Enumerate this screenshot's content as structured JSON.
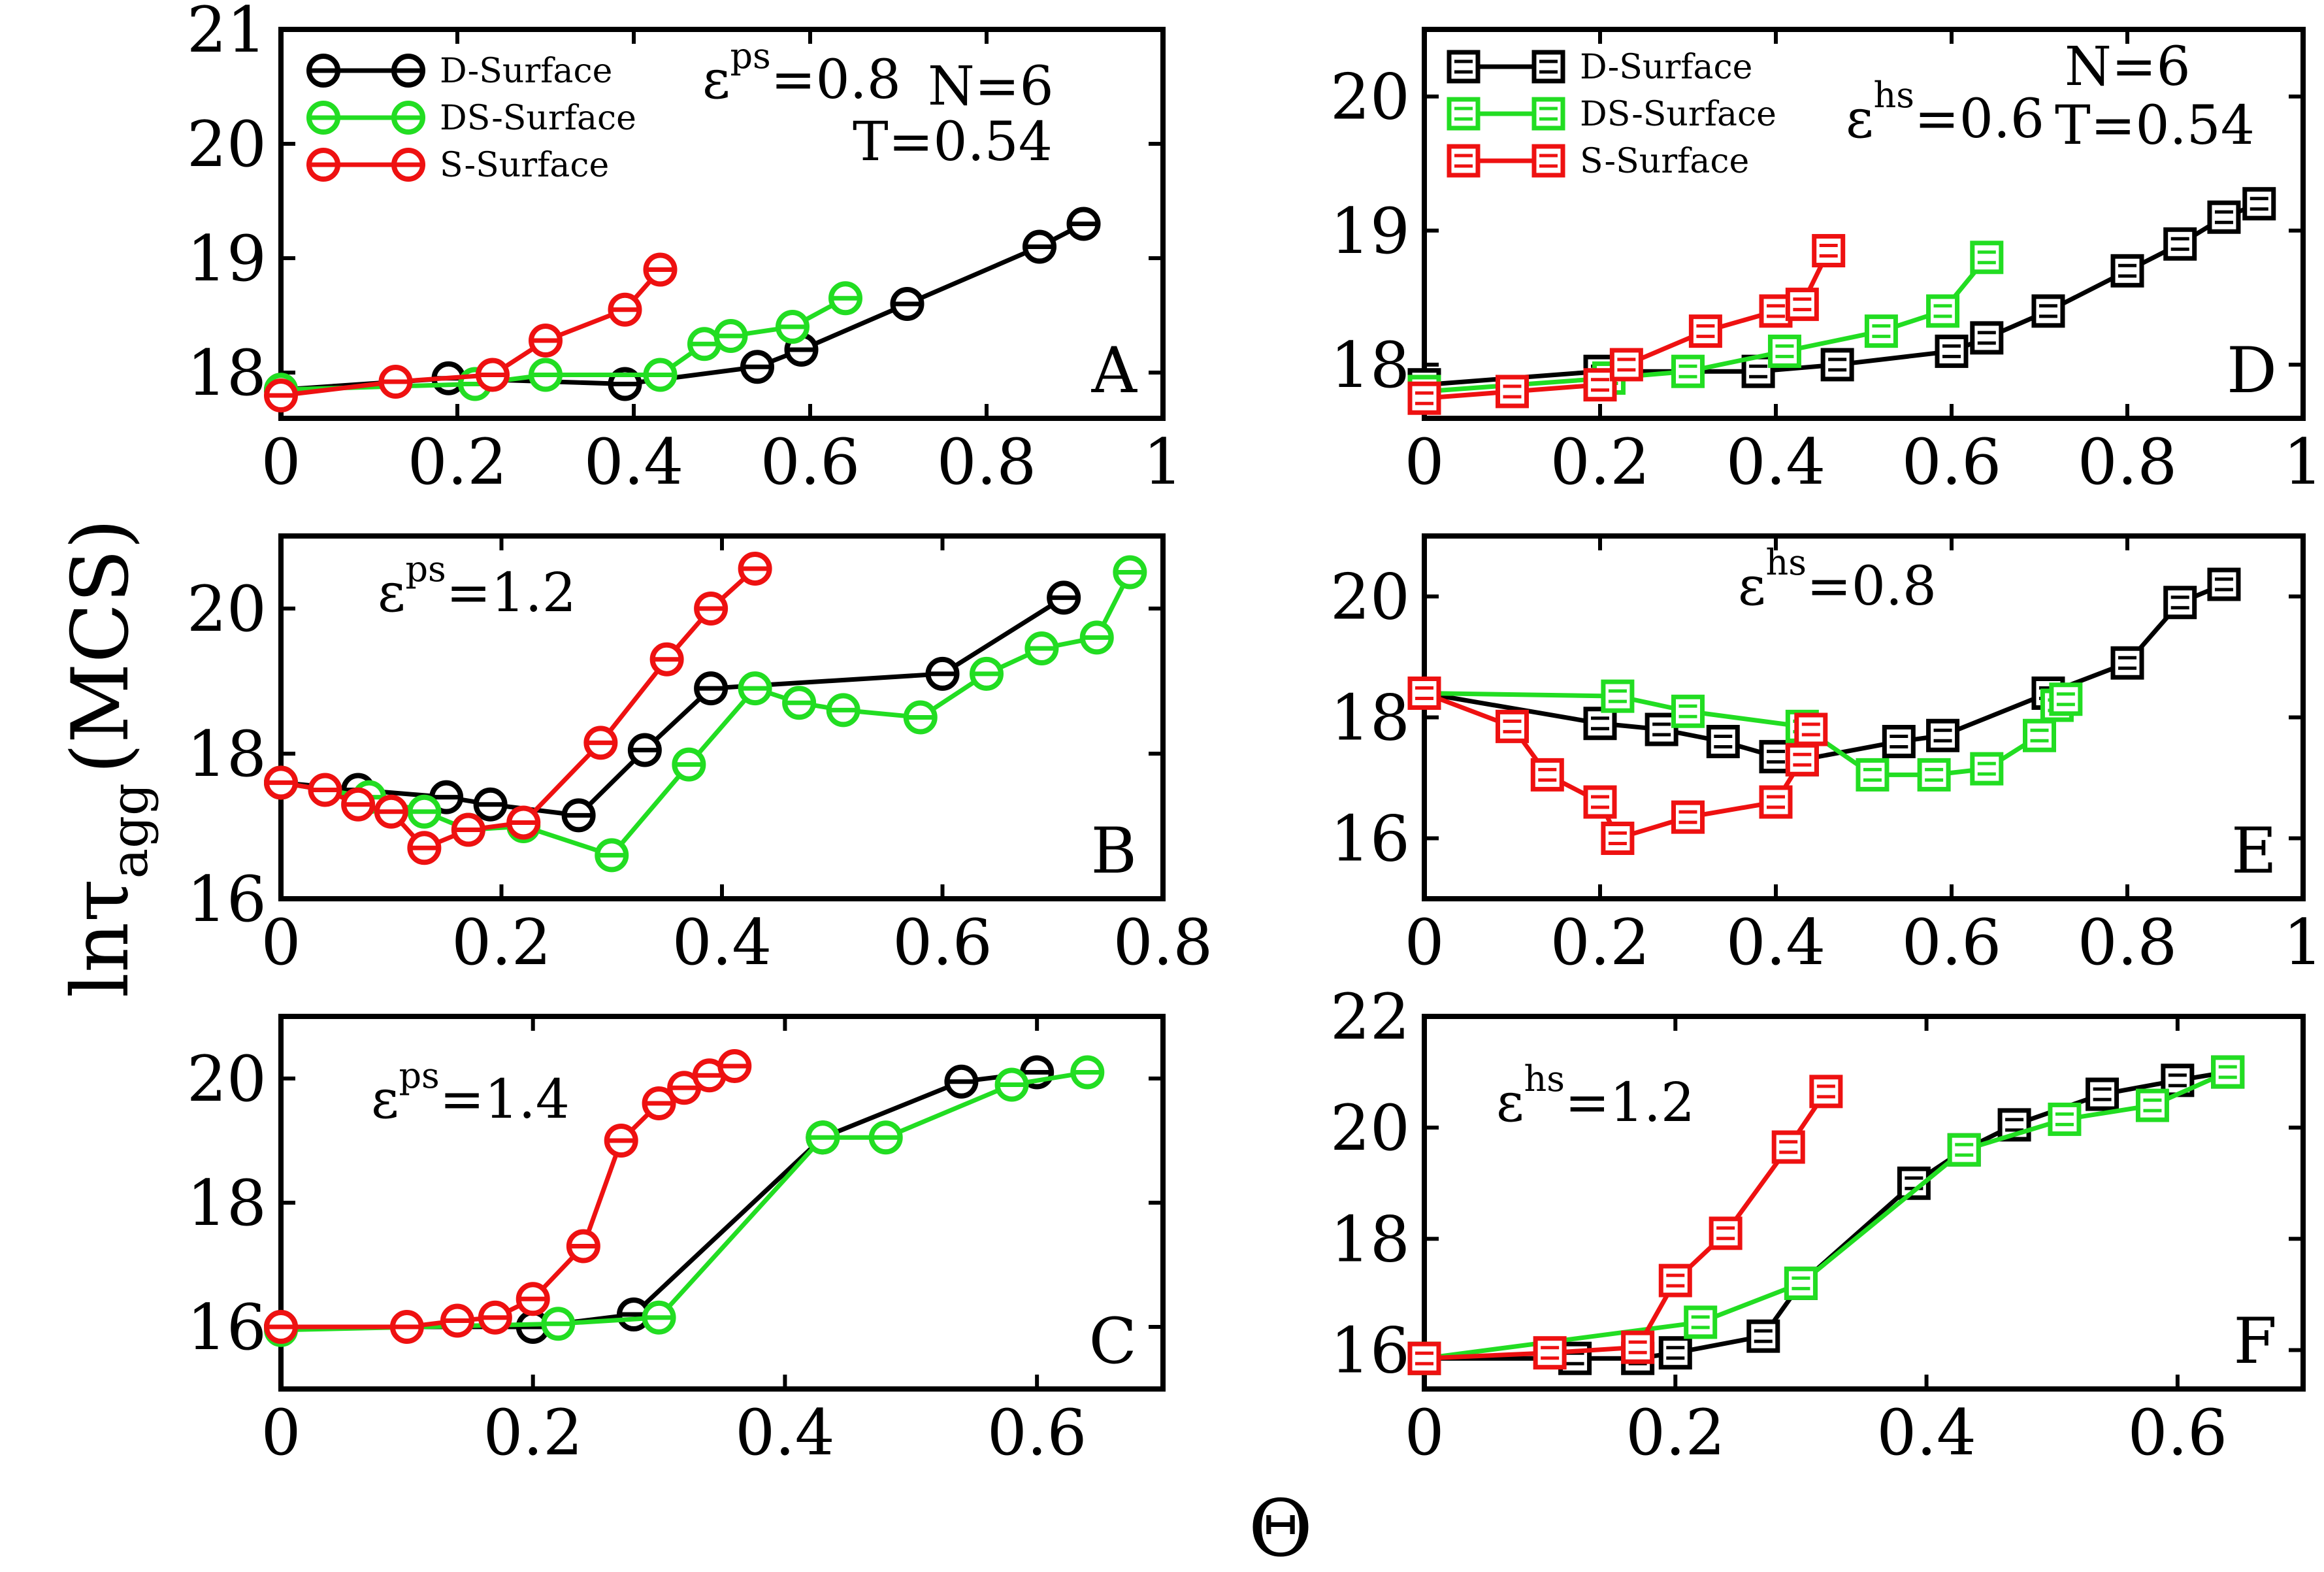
{
  "figure": {
    "ylabel": {
      "main": "lnτ",
      "sub": "agg",
      "rest": "(MCS)"
    },
    "xlabel": "Θ"
  },
  "series_colors": {
    "D-Surface": "#000000",
    "DS-Surface": "#22dd22",
    "S-Surface": "#ee1111"
  },
  "chart_data": [
    {
      "type": "line",
      "panel": "A",
      "marker": "circle",
      "xlim": [
        0,
        1
      ],
      "ylim": [
        17.6,
        21
      ],
      "xticks": [
        0,
        0.2,
        0.4,
        0.6,
        0.8,
        1
      ],
      "xtick_labels": [
        "0",
        "0.2",
        "0.4",
        "0.6",
        "0.8",
        "1"
      ],
      "yticks": [
        18,
        19,
        20,
        21
      ],
      "ytick_labels": [
        "18",
        "19",
        "20",
        "21"
      ],
      "legend": [
        "D-Surface",
        "DS-Surface",
        "S-Surface"
      ],
      "annotations": [
        {
          "name": "epsilon-label",
          "base": "ε",
          "sup": "ps",
          "value": "=0.8"
        },
        {
          "name": "n-label",
          "text": "N=6"
        },
        {
          "name": "t-label",
          "text": "T=0.54"
        }
      ],
      "series": [
        {
          "name": "D-Surface",
          "x": [
            0,
            0.19,
            0.39,
            0.54,
            0.59,
            0.71,
            0.86,
            0.91
          ],
          "y": [
            17.85,
            17.95,
            17.9,
            18.05,
            18.2,
            18.6,
            19.1,
            19.3
          ]
        },
        {
          "name": "DS-Surface",
          "x": [
            0,
            0.22,
            0.3,
            0.43,
            0.48,
            0.51,
            0.58,
            0.64
          ],
          "y": [
            17.85,
            17.9,
            17.98,
            17.98,
            18.25,
            18.32,
            18.4,
            18.65
          ]
        },
        {
          "name": "S-Surface",
          "x": [
            0,
            0.13,
            0.24,
            0.3,
            0.39,
            0.43
          ],
          "y": [
            17.8,
            17.92,
            17.98,
            18.28,
            18.55,
            18.9
          ]
        }
      ]
    },
    {
      "type": "line",
      "panel": "B",
      "marker": "circle",
      "xlim": [
        0,
        0.8
      ],
      "ylim": [
        16,
        21
      ],
      "xticks": [
        0,
        0.2,
        0.4,
        0.6,
        0.8
      ],
      "xtick_labels": [
        "0",
        "0.2",
        "0.4",
        "0.6",
        "0.8"
      ],
      "yticks": [
        16,
        18,
        20
      ],
      "ytick_labels": [
        "16",
        "18",
        "20"
      ],
      "annotations": [
        {
          "name": "epsilon-label",
          "base": "ε",
          "sup": "ps",
          "value": "=1.2"
        }
      ],
      "series": [
        {
          "name": "D-Surface",
          "x": [
            0,
            0.07,
            0.15,
            0.19,
            0.27,
            0.33,
            0.39,
            0.6,
            0.71
          ],
          "y": [
            17.6,
            17.5,
            17.4,
            17.3,
            17.15,
            18.05,
            18.9,
            19.1,
            20.15
          ]
        },
        {
          "name": "DS-Surface",
          "x": [
            0,
            0.08,
            0.13,
            0.17,
            0.22,
            0.3,
            0.37,
            0.43,
            0.47,
            0.51,
            0.58,
            0.64,
            0.69,
            0.74,
            0.77
          ],
          "y": [
            17.6,
            17.4,
            17.2,
            16.95,
            17.0,
            16.6,
            17.85,
            18.9,
            18.7,
            18.6,
            18.5,
            19.1,
            19.45,
            19.6,
            20.5
          ]
        },
        {
          "name": "S-Surface",
          "x": [
            0,
            0.04,
            0.07,
            0.1,
            0.13,
            0.17,
            0.22,
            0.29,
            0.35,
            0.39,
            0.43
          ],
          "y": [
            17.6,
            17.5,
            17.3,
            17.2,
            16.7,
            16.95,
            17.05,
            18.15,
            19.3,
            20.0,
            20.55
          ]
        }
      ]
    },
    {
      "type": "line",
      "panel": "C",
      "marker": "circle",
      "xlim": [
        0,
        0.7
      ],
      "ylim": [
        15,
        21
      ],
      "xticks": [
        0,
        0.2,
        0.4,
        0.6
      ],
      "xtick_labels": [
        "0",
        "0.2",
        "0.4",
        "0.6"
      ],
      "yticks": [
        16,
        18,
        20
      ],
      "ytick_labels": [
        "16",
        "18",
        "20"
      ],
      "annotations": [
        {
          "name": "epsilon-label",
          "base": "ε",
          "sup": "ps",
          "value": "=1.4"
        }
      ],
      "series": [
        {
          "name": "D-Surface",
          "x": [
            0,
            0.2,
            0.28,
            0.43,
            0.54,
            0.6
          ],
          "y": [
            16.0,
            16.0,
            16.2,
            19.05,
            19.95,
            20.1
          ]
        },
        {
          "name": "DS-Surface",
          "x": [
            0,
            0.22,
            0.3,
            0.43,
            0.48,
            0.58,
            0.64
          ],
          "y": [
            15.95,
            16.05,
            16.15,
            19.05,
            19.05,
            19.9,
            20.1
          ]
        },
        {
          "name": "S-Surface",
          "x": [
            0,
            0.1,
            0.14,
            0.17,
            0.2,
            0.24,
            0.27,
            0.3,
            0.32,
            0.34,
            0.36
          ],
          "y": [
            16.0,
            16.0,
            16.1,
            16.15,
            16.45,
            17.3,
            19.0,
            19.6,
            19.85,
            20.05,
            20.2
          ]
        }
      ]
    },
    {
      "type": "line",
      "panel": "D",
      "marker": "square",
      "xlim": [
        0,
        1
      ],
      "ylim": [
        17.6,
        20.5
      ],
      "xticks": [
        0,
        0.2,
        0.4,
        0.6,
        0.8,
        1
      ],
      "xtick_labels": [
        "0",
        "0.2",
        "0.4",
        "0.6",
        "0.8",
        "1"
      ],
      "yticks": [
        18,
        19,
        20
      ],
      "ytick_labels": [
        "18",
        "19",
        "20"
      ],
      "legend": [
        "D-Surface",
        "DS-Surface",
        "S-Surface"
      ],
      "annotations": [
        {
          "name": "epsilon-label",
          "base": "ε",
          "sup": "hs",
          "value": "=0.6"
        },
        {
          "name": "n-label",
          "text": "N=6"
        },
        {
          "name": "t-label",
          "text": "T=0.54"
        }
      ],
      "series": [
        {
          "name": "D-Surface",
          "x": [
            0,
            0.2,
            0.38,
            0.47,
            0.6,
            0.64,
            0.71,
            0.8,
            0.86,
            0.91,
            0.95
          ],
          "y": [
            17.85,
            17.95,
            17.95,
            18.0,
            18.1,
            18.2,
            18.4,
            18.7,
            18.9,
            19.1,
            19.2
          ]
        },
        {
          "name": "DS-Surface",
          "x": [
            0,
            0.21,
            0.3,
            0.41,
            0.52,
            0.59,
            0.64
          ],
          "y": [
            17.8,
            17.9,
            17.95,
            18.1,
            18.25,
            18.4,
            18.8
          ]
        },
        {
          "name": "S-Surface",
          "x": [
            0,
            0.1,
            0.2,
            0.23,
            0.32,
            0.4,
            0.43,
            0.46
          ],
          "y": [
            17.75,
            17.8,
            17.85,
            18.0,
            18.25,
            18.4,
            18.45,
            18.85
          ]
        }
      ]
    },
    {
      "type": "line",
      "panel": "E",
      "marker": "square",
      "xlim": [
        0,
        1
      ],
      "ylim": [
        15,
        21
      ],
      "xticks": [
        0,
        0.2,
        0.4,
        0.6,
        0.8,
        1
      ],
      "xtick_labels": [
        "0",
        "0.2",
        "0.4",
        "0.6",
        "0.8",
        "1"
      ],
      "yticks": [
        16,
        18,
        20
      ],
      "ytick_labels": [
        "16",
        "18",
        "20"
      ],
      "annotations": [
        {
          "name": "epsilon-label",
          "base": "ε",
          "sup": "hs",
          "value": "=0.8"
        }
      ],
      "series": [
        {
          "name": "D-Surface",
          "x": [
            0,
            0.2,
            0.27,
            0.34,
            0.4,
            0.43,
            0.54,
            0.59,
            0.71,
            0.8,
            0.86,
            0.91
          ],
          "y": [
            18.4,
            17.9,
            17.8,
            17.6,
            17.35,
            17.3,
            17.6,
            17.7,
            18.4,
            18.9,
            19.9,
            20.2
          ]
        },
        {
          "name": "DS-Surface",
          "x": [
            0,
            0.22,
            0.3,
            0.43,
            0.51,
            0.58,
            0.64,
            0.7,
            0.72,
            0.73
          ],
          "y": [
            18.4,
            18.35,
            18.1,
            17.85,
            17.05,
            17.05,
            17.15,
            17.7,
            18.2,
            18.3
          ]
        },
        {
          "name": "S-Surface",
          "x": [
            0,
            0.1,
            0.14,
            0.2,
            0.22,
            0.3,
            0.4,
            0.43,
            0.44
          ],
          "y": [
            18.4,
            17.85,
            17.05,
            16.6,
            16.0,
            16.35,
            16.6,
            17.3,
            17.8
          ]
        }
      ]
    },
    {
      "type": "line",
      "panel": "F",
      "marker": "square",
      "xlim": [
        0,
        0.7
      ],
      "ylim": [
        15.3,
        22
      ],
      "xticks": [
        0,
        0.2,
        0.4,
        0.6
      ],
      "xtick_labels": [
        "0",
        "0.2",
        "0.4",
        "0.6"
      ],
      "yticks": [
        16,
        18,
        20,
        22
      ],
      "ytick_labels": [
        "16",
        "18",
        "20",
        "22"
      ],
      "annotations": [
        {
          "name": "epsilon-label",
          "base": "ε",
          "sup": "hs",
          "value": "=1.2"
        }
      ],
      "series": [
        {
          "name": "D-Surface",
          "x": [
            0,
            0.12,
            0.17,
            0.2,
            0.27,
            0.3,
            0.39,
            0.43,
            0.47,
            0.54,
            0.6,
            0.64
          ],
          "y": [
            15.85,
            15.85,
            15.85,
            15.95,
            16.25,
            17.2,
            19.0,
            19.6,
            20.05,
            20.6,
            20.85,
            21.0
          ]
        },
        {
          "name": "DS-Surface",
          "x": [
            0,
            0.22,
            0.3,
            0.43,
            0.51,
            0.58,
            0.64
          ],
          "y": [
            15.85,
            16.5,
            17.2,
            19.6,
            20.15,
            20.4,
            21.0
          ]
        },
        {
          "name": "S-Surface",
          "x": [
            0,
            0.1,
            0.17,
            0.2,
            0.24,
            0.29,
            0.32
          ],
          "y": [
            15.85,
            15.95,
            16.05,
            17.25,
            18.1,
            19.65,
            20.65
          ]
        }
      ]
    }
  ]
}
